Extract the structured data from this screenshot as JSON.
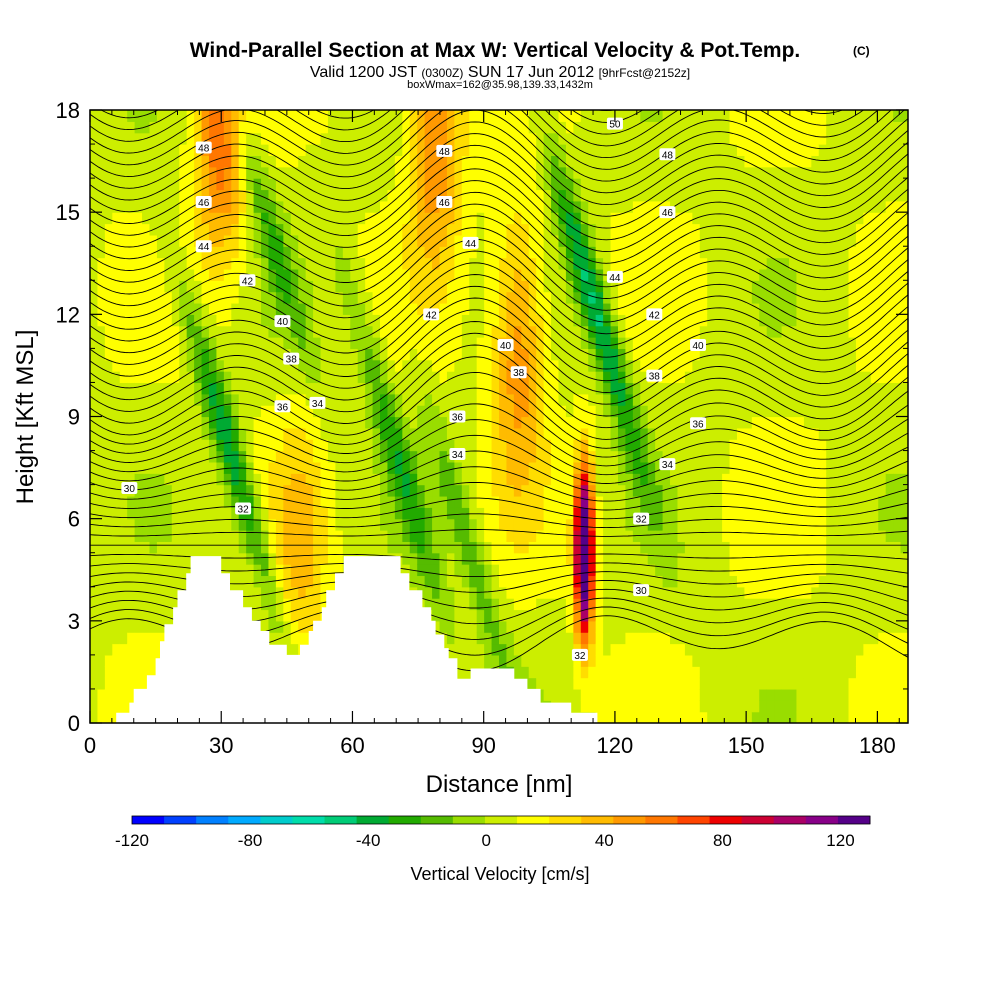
{
  "chart_data": {
    "type": "heatmap",
    "title": "Wind-Parallel Section at Max W: Vertical Velocity & Pot.Temp.",
    "title_mark": "(C)",
    "subtitle": {
      "part1": "Valid 1200 JST",
      "part2": "(0300Z)",
      "part3": "SUN 17 Jun 2012",
      "part4": "[9hrFcst@2152z]"
    },
    "subtitle2": "boxWmax=162@35.98,139.33,1432m",
    "xlabel": "Distance [nm]",
    "ylabel": "Height [Kft MSL]",
    "xlim": [
      0,
      187
    ],
    "ylim": [
      0,
      18
    ],
    "x_ticks": [
      0,
      30,
      60,
      90,
      120,
      150,
      180
    ],
    "y_ticks": [
      0,
      3,
      6,
      9,
      12,
      15,
      18
    ],
    "colorbar": {
      "label": "Vertical Velocity [cm/s]",
      "range": [
        -120,
        130
      ],
      "ticks": [
        -120,
        -80,
        -40,
        0,
        40,
        80,
        120
      ],
      "colors": [
        "#0000ff",
        "#0040ff",
        "#0080ff",
        "#00aaff",
        "#00cccc",
        "#00ddaa",
        "#00cc77",
        "#00aa33",
        "#22aa00",
        "#55bb00",
        "#99dd00",
        "#ccee00",
        "#ffff00",
        "#ffdd00",
        "#ffbb00",
        "#ff9900",
        "#ff7700",
        "#ff4400",
        "#ee0000",
        "#cc0033",
        "#aa0066",
        "#880088",
        "#550088"
      ]
    },
    "contour_field": "Potential Temperature",
    "contour_labels": [
      {
        "x": 26,
        "y": 16.9,
        "text": "48"
      },
      {
        "x": 26,
        "y": 15.3,
        "text": "46"
      },
      {
        "x": 26,
        "y": 14.0,
        "text": "44"
      },
      {
        "x": 36,
        "y": 13.0,
        "text": "42"
      },
      {
        "x": 44,
        "y": 11.8,
        "text": "40"
      },
      {
        "x": 46,
        "y": 10.7,
        "text": "38"
      },
      {
        "x": 44,
        "y": 9.3,
        "text": "36"
      },
      {
        "x": 52,
        "y": 9.4,
        "text": "34"
      },
      {
        "x": 35,
        "y": 6.3,
        "text": "32"
      },
      {
        "x": 9,
        "y": 6.9,
        "text": "30"
      },
      {
        "x": 81,
        "y": 16.8,
        "text": "48"
      },
      {
        "x": 81,
        "y": 15.3,
        "text": "46"
      },
      {
        "x": 87,
        "y": 14.1,
        "text": "44"
      },
      {
        "x": 78,
        "y": 12.0,
        "text": "42"
      },
      {
        "x": 95,
        "y": 11.1,
        "text": "40"
      },
      {
        "x": 98,
        "y": 10.3,
        "text": "38"
      },
      {
        "x": 84,
        "y": 9.0,
        "text": "36"
      },
      {
        "x": 84,
        "y": 7.9,
        "text": "34"
      },
      {
        "x": 112,
        "y": 2.0,
        "text": "32"
      },
      {
        "x": 120,
        "y": 17.6,
        "text": "50"
      },
      {
        "x": 132,
        "y": 16.7,
        "text": "48"
      },
      {
        "x": 132,
        "y": 15.0,
        "text": "46"
      },
      {
        "x": 120,
        "y": 13.1,
        "text": "44"
      },
      {
        "x": 129,
        "y": 12.0,
        "text": "42"
      },
      {
        "x": 139,
        "y": 11.1,
        "text": "40"
      },
      {
        "x": 129,
        "y": 10.2,
        "text": "38"
      },
      {
        "x": 139,
        "y": 8.8,
        "text": "36"
      },
      {
        "x": 132,
        "y": 7.6,
        "text": "34"
      },
      {
        "x": 126,
        "y": 6.0,
        "text": "32"
      },
      {
        "x": 126,
        "y": 3.9,
        "text": "30"
      }
    ],
    "velocity_features": [
      {
        "type": "updraft",
        "x": 113,
        "z": 5.0,
        "peak": 162
      },
      {
        "type": "updraft",
        "x": 30,
        "z": 17.5,
        "peak": 55
      },
      {
        "type": "updraft",
        "x": 79,
        "z": 17.5,
        "peak": 50
      },
      {
        "type": "updraft",
        "x": 98,
        "z": 11,
        "peak": 45
      },
      {
        "type": "updraft",
        "x": 48,
        "z": 5,
        "peak": 25
      },
      {
        "type": "downdraft",
        "x": 32,
        "z": 8,
        "peak": -50
      },
      {
        "type": "downdraft",
        "x": 70,
        "z": 8,
        "peak": -35
      },
      {
        "type": "downdraft",
        "x": 87,
        "z": 5,
        "peak": -25
      },
      {
        "type": "downdraft",
        "x": 116,
        "z": 12,
        "peak": -55
      },
      {
        "type": "downdraft",
        "x": 40,
        "z": 15,
        "peak": -30
      }
    ],
    "terrain": [
      [
        0,
        0
      ],
      [
        6,
        0
      ],
      [
        6,
        0.3
      ],
      [
        9,
        0.3
      ],
      [
        9,
        0.6
      ],
      [
        10,
        0.6
      ],
      [
        10,
        1.0
      ],
      [
        13,
        1.0
      ],
      [
        13,
        1.4
      ],
      [
        15,
        1.4
      ],
      [
        15,
        1.9
      ],
      [
        16,
        1.9
      ],
      [
        16,
        2.4
      ],
      [
        17,
        2.4
      ],
      [
        17,
        2.9
      ],
      [
        19,
        2.9
      ],
      [
        19,
        3.4
      ],
      [
        20,
        3.4
      ],
      [
        20,
        3.9
      ],
      [
        22,
        3.9
      ],
      [
        22,
        4.4
      ],
      [
        23,
        4.4
      ],
      [
        23,
        4.9
      ],
      [
        30,
        4.9
      ],
      [
        30,
        4.4
      ],
      [
        32,
        4.4
      ],
      [
        32,
        3.9
      ],
      [
        35,
        3.9
      ],
      [
        35,
        3.4
      ],
      [
        37,
        3.4
      ],
      [
        37,
        3.0
      ],
      [
        39,
        3.0
      ],
      [
        39,
        2.7
      ],
      [
        41,
        2.7
      ],
      [
        41,
        2.3
      ],
      [
        45,
        2.3
      ],
      [
        45,
        2.0
      ],
      [
        48,
        2.0
      ],
      [
        48,
        2.3
      ],
      [
        50,
        2.3
      ],
      [
        50,
        2.7
      ],
      [
        51,
        2.7
      ],
      [
        51,
        3.0
      ],
      [
        53,
        3.0
      ],
      [
        53,
        3.4
      ],
      [
        54,
        3.4
      ],
      [
        54,
        3.9
      ],
      [
        56,
        3.9
      ],
      [
        56,
        4.4
      ],
      [
        58,
        4.4
      ],
      [
        58,
        4.9
      ],
      [
        71,
        4.9
      ],
      [
        71,
        4.4
      ],
      [
        73,
        4.4
      ],
      [
        73,
        3.9
      ],
      [
        76,
        3.9
      ],
      [
        76,
        3.4
      ],
      [
        78,
        3.4
      ],
      [
        78,
        3.0
      ],
      [
        79,
        3.0
      ],
      [
        79,
        2.6
      ],
      [
        81,
        2.6
      ],
      [
        81,
        2.2
      ],
      [
        82,
        2.2
      ],
      [
        82,
        1.9
      ],
      [
        84,
        1.9
      ],
      [
        84,
        1.3
      ],
      [
        87,
        1.3
      ],
      [
        87,
        1.6
      ],
      [
        97,
        1.6
      ],
      [
        97,
        1.3
      ],
      [
        100,
        1.3
      ],
      [
        100,
        1.0
      ],
      [
        103,
        1.0
      ],
      [
        103,
        0.6
      ],
      [
        110,
        0.6
      ],
      [
        110,
        0.3
      ],
      [
        116,
        0.3
      ],
      [
        116,
        0
      ],
      [
        187,
        0
      ]
    ]
  }
}
